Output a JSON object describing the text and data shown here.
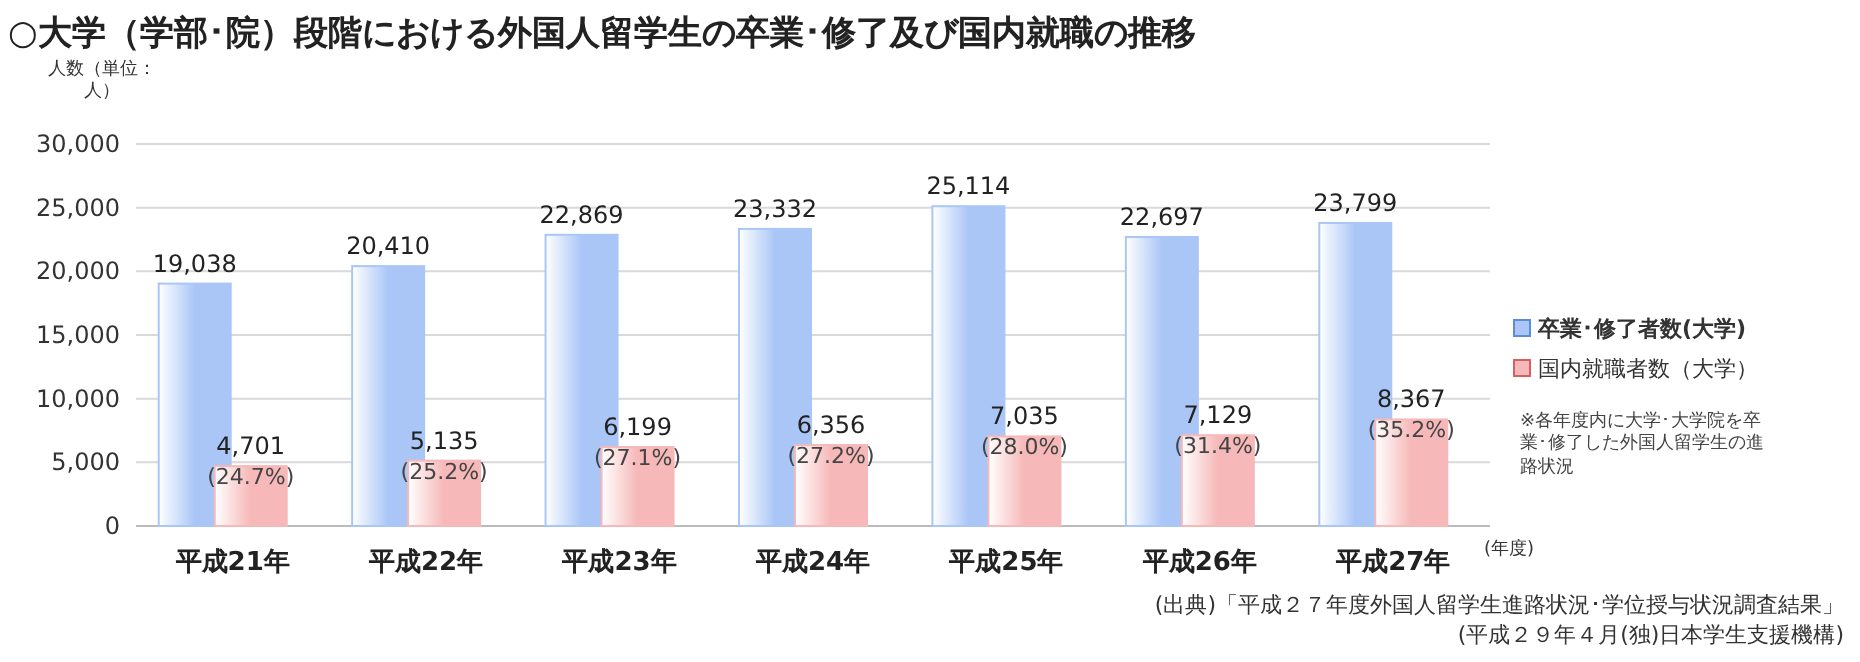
{
  "chart_data": {
    "type": "bar",
    "title": "○大学（学部･院）段階における外国人留学生の卒業･修了及び国内就職の推移",
    "ylabel": "人数（単位：人）",
    "xlabel": "(年度)",
    "categories": [
      "平成21年",
      "平成22年",
      "平成23年",
      "平成24年",
      "平成25年",
      "平成26年",
      "平成27年"
    ],
    "series": [
      {
        "name": "卒業･修了者数(大学)",
        "color": "#aac6f6",
        "values": [
          19038,
          20410,
          22869,
          23332,
          25114,
          22697,
          23799
        ],
        "value_labels": [
          "19,038",
          "20,410",
          "22,869",
          "23,332",
          "25,114",
          "22,697",
          "23,799"
        ]
      },
      {
        "name": "国内就職者数（大学）",
        "color": "#f6b8b8",
        "values": [
          4701,
          5135,
          6199,
          6356,
          7035,
          7129,
          8367
        ],
        "value_labels": [
          "4,701",
          "5,135",
          "6,199",
          "6,356",
          "7,035",
          "7,129",
          "8,367"
        ]
      }
    ],
    "ylim": [
      0,
      30000
    ],
    "yticks": [
      {
        "value": 0,
        "label": "0"
      },
      {
        "value": 5000,
        "label": "5,000"
      },
      {
        "value": 10000,
        "label": "10,000"
      },
      {
        "value": 15000,
        "label": "15,000"
      },
      {
        "value": 20000,
        "label": "20,000"
      },
      {
        "value": 25000,
        "label": "25,000"
      },
      {
        "value": 30000,
        "label": "30,000"
      }
    ],
    "grid": "y",
    "legend": "right",
    "annotations": [
      {
        "text": "(24.7%)",
        "x": "平成21年",
        "y": 4701
      },
      {
        "text": "(25.2%)",
        "x": "平成22年",
        "y": 5135
      },
      {
        "text": "(27.1%)",
        "x": "平成23年",
        "y": 6199
      },
      {
        "text": "(27.2%)",
        "x": "平成24年",
        "y": 6356
      },
      {
        "text": "(28.0%)",
        "x": "平成25年",
        "y": 7035
      },
      {
        "text": "(31.4%)",
        "x": "平成26年",
        "y": 7129
      },
      {
        "text": "(35.2%)",
        "x": "平成27年",
        "y": 8367
      },
      "※各年度内に大学･大学院を卒業･修了した外国人留学生の進路状況",
      "(出典)「平成２７年度外国人留学生進路状況･学位授与状況調査結果」",
      "(平成２９年４月(独)日本学生支援機構)"
    ]
  }
}
